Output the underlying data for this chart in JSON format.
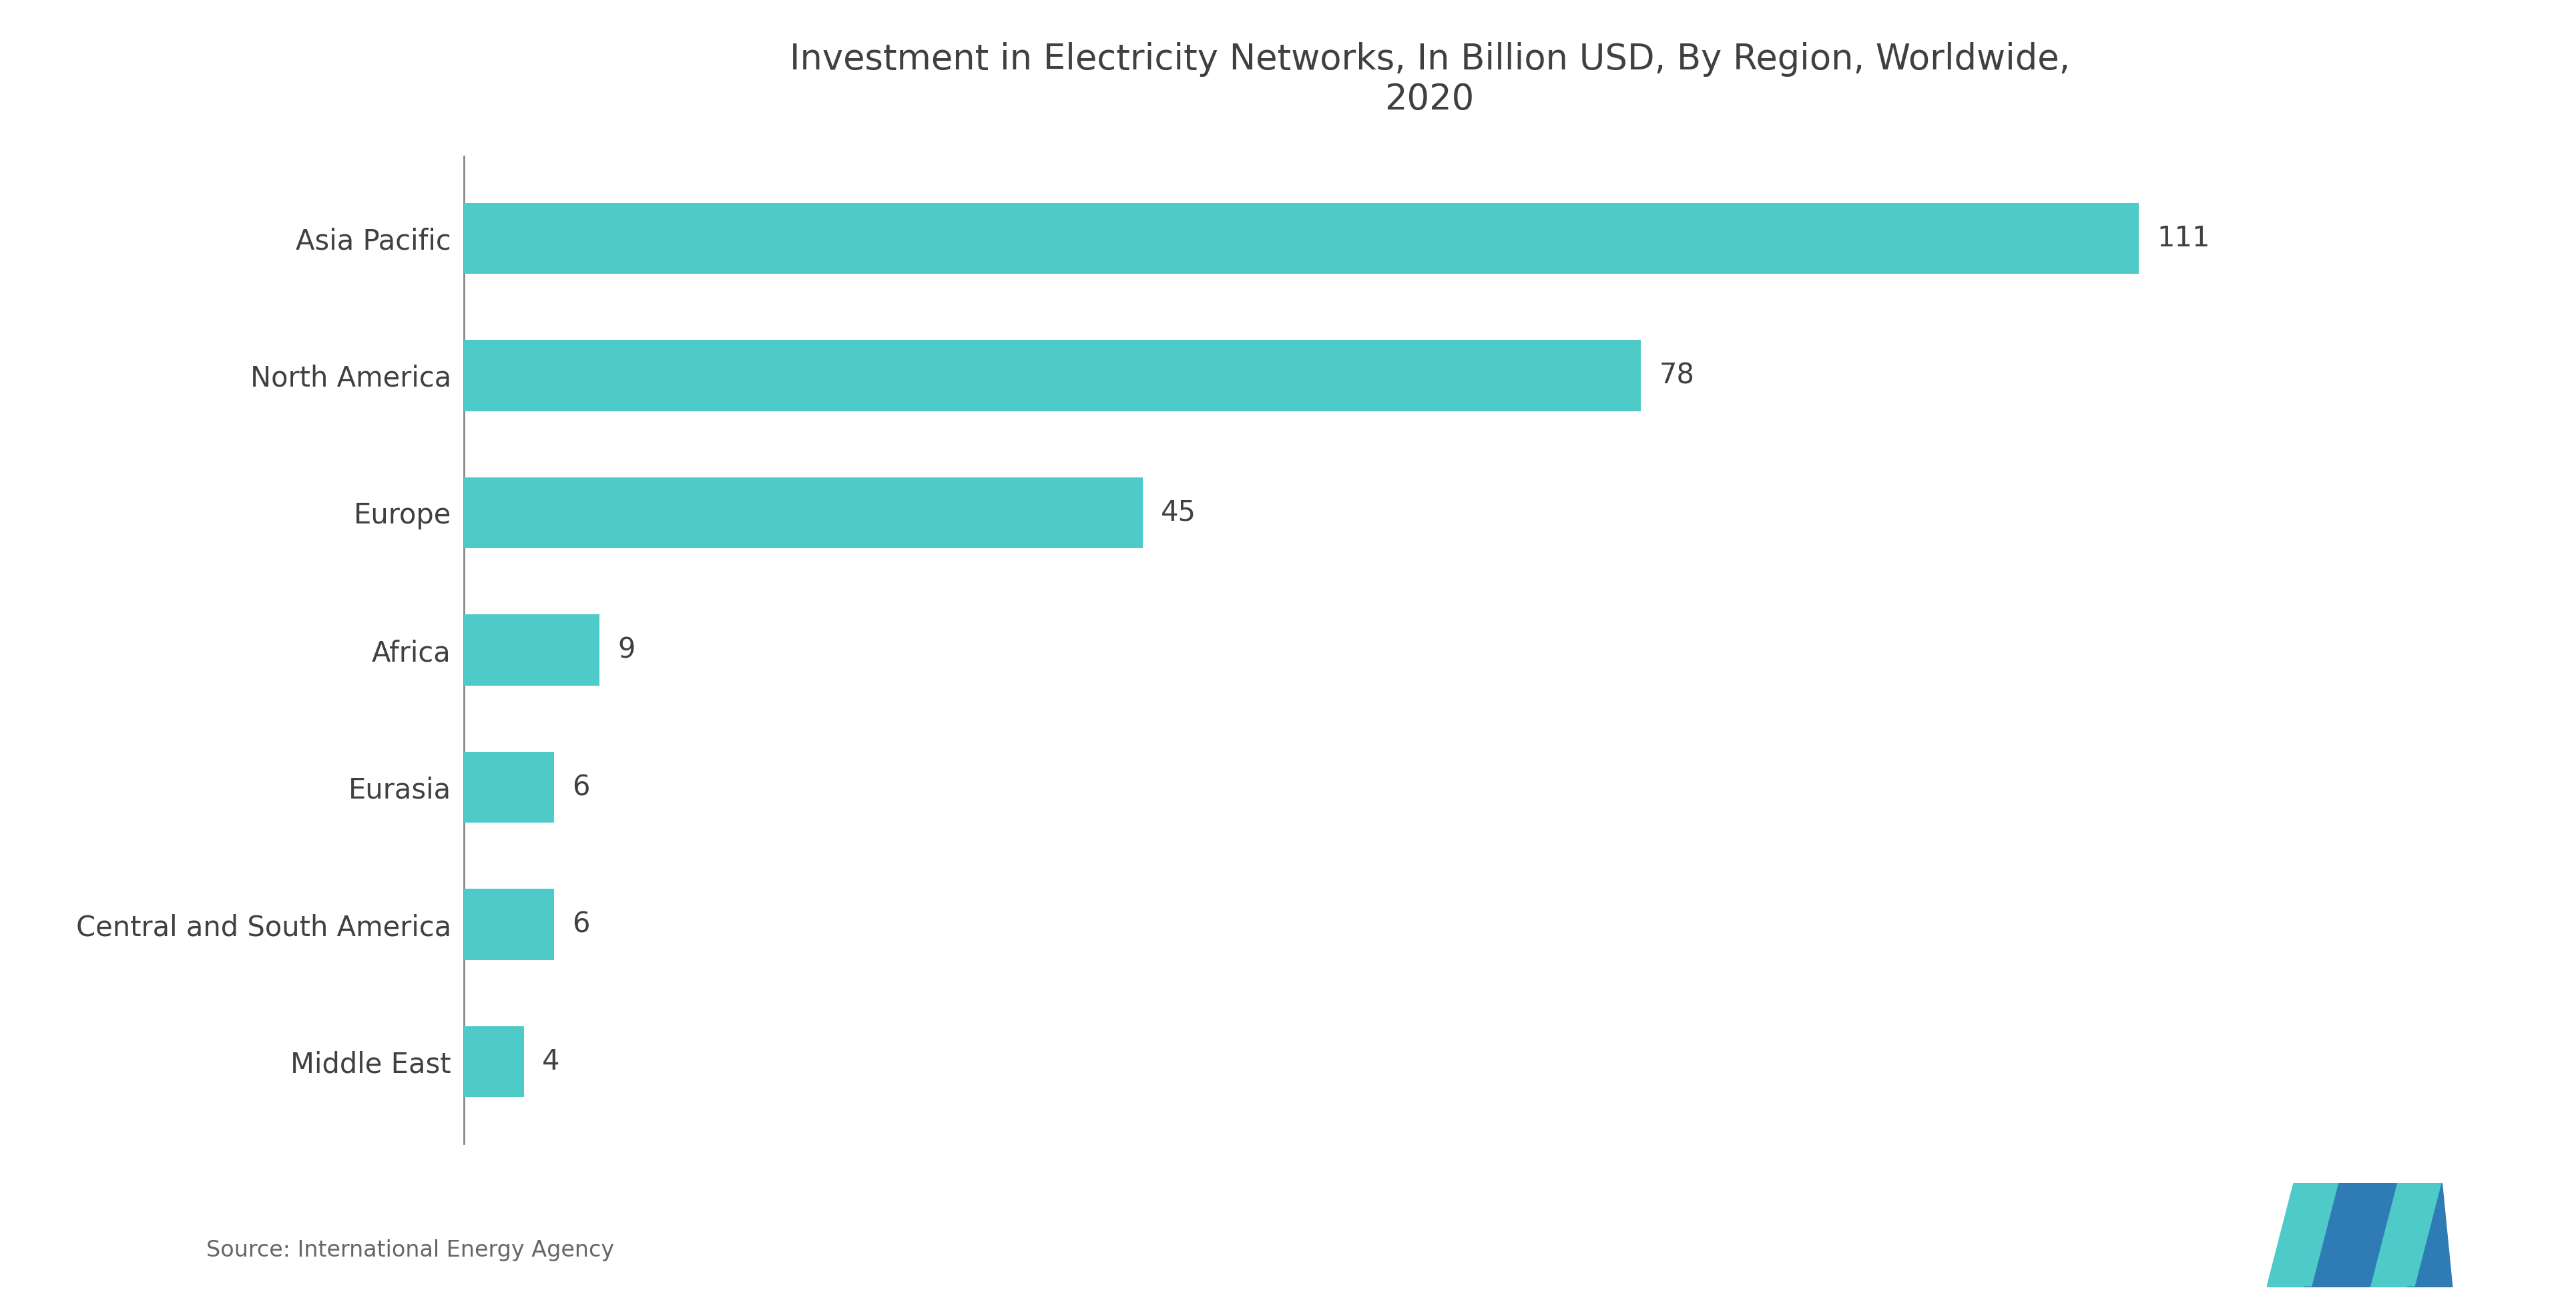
{
  "title": "Investment in Electricity Networks, In Billion USD, By Region, Worldwide,\n2020",
  "categories": [
    "Asia Pacific",
    "North America",
    "Europe",
    "Africa",
    "Eurasia",
    "Central and South America",
    "Middle East"
  ],
  "values": [
    111,
    78,
    45,
    9,
    6,
    6,
    4
  ],
  "bar_color": "#4ECAC8",
  "background_color": "#ffffff",
  "text_color": "#404040",
  "title_color": "#404040",
  "source_color": "#666666",
  "label_fontsize": 30,
  "title_fontsize": 38,
  "value_fontsize": 30,
  "source_text": "Source: International Energy Agency",
  "source_fontsize": 24,
  "logo_color1": "#4ECAC8",
  "logo_color2": "#2E7BB5"
}
